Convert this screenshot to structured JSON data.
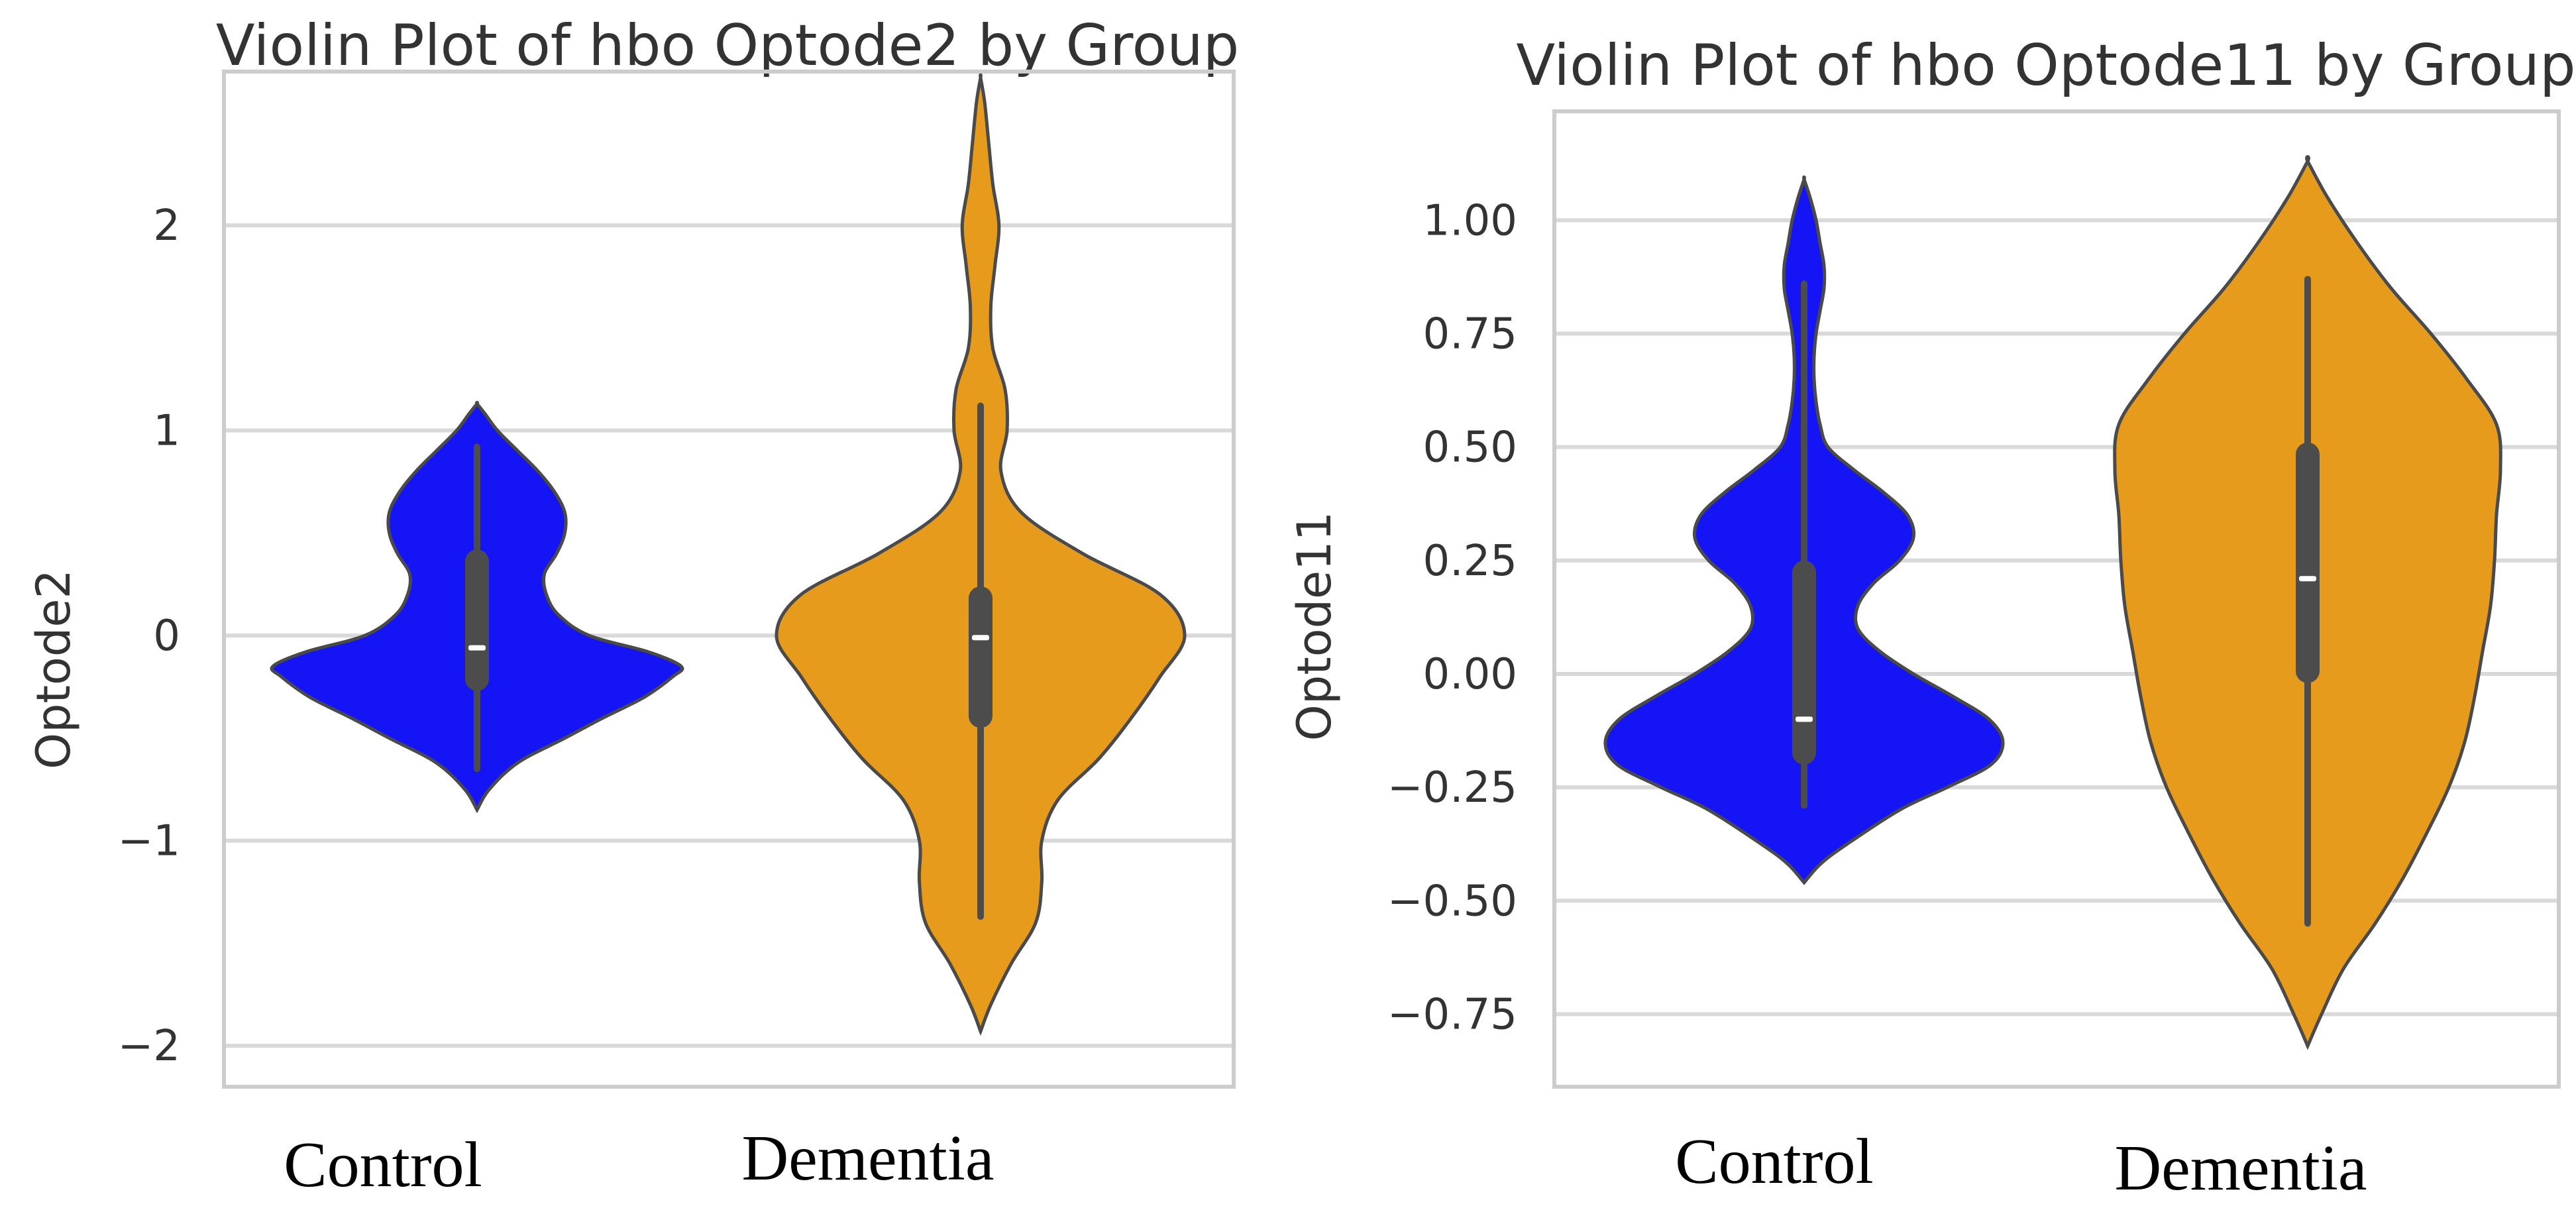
{
  "colors": {
    "control": "#1414f5",
    "dementia": "#e69b1c",
    "box": "#4c4c4c",
    "median": "#ffffff",
    "outline": "#4a4a4a"
  },
  "chart_data": [
    {
      "type": "violin",
      "title": "Violin Plot of hbo Optode2 by Group",
      "xlabel": "",
      "ylabel": "Optode2",
      "categories": [
        "Control",
        "Dementia"
      ],
      "ylim": [
        -2.2,
        2.75
      ],
      "yticks": [
        -2,
        -1,
        0,
        1,
        2
      ],
      "ytick_labels": [
        "−2",
        "−1",
        "0",
        "1",
        "2"
      ],
      "grid": true,
      "series": [
        {
          "name": "Control",
          "color": "#1414f5",
          "violin_min": -0.85,
          "violin_max": 1.13,
          "profile_y": [
            -0.85,
            -0.75,
            -0.62,
            -0.5,
            -0.4,
            -0.3,
            -0.2,
            -0.15,
            -0.08,
            0.0,
            0.1,
            0.2,
            0.3,
            0.4,
            0.5,
            0.6,
            0.7,
            0.8,
            0.9,
            1.0,
            1.08,
            1.13
          ],
          "profile_w": [
            0.0,
            0.06,
            0.2,
            0.43,
            0.62,
            0.82,
            0.96,
            1.0,
            0.84,
            0.55,
            0.4,
            0.34,
            0.33,
            0.39,
            0.43,
            0.43,
            0.38,
            0.3,
            0.2,
            0.1,
            0.04,
            0.0
          ],
          "whisker_low": -0.65,
          "q1": -0.27,
          "median": -0.06,
          "q3": 0.42,
          "whisker_high": 0.92
        },
        {
          "name": "Dementia",
          "color": "#e69b1c",
          "violin_min": -1.93,
          "violin_max": 2.72,
          "profile_y": [
            -1.93,
            -1.8,
            -1.6,
            -1.4,
            -1.2,
            -1.0,
            -0.8,
            -0.6,
            -0.4,
            -0.2,
            0.0,
            0.2,
            0.4,
            0.6,
            0.8,
            1.0,
            1.2,
            1.4,
            1.6,
            1.8,
            2.0,
            2.2,
            2.4,
            2.6,
            2.72
          ],
          "profile_w": [
            0.0,
            0.05,
            0.15,
            0.27,
            0.3,
            0.3,
            0.38,
            0.58,
            0.74,
            0.88,
            1.0,
            0.88,
            0.5,
            0.2,
            0.1,
            0.13,
            0.12,
            0.06,
            0.05,
            0.07,
            0.09,
            0.06,
            0.04,
            0.02,
            0.0
          ],
          "whisker_low": -1.37,
          "q1": -0.45,
          "median": -0.01,
          "q3": 0.24,
          "whisker_high": 1.12
        }
      ]
    },
    {
      "type": "violin",
      "title": "Violin Plot of hbo Optode11 by Group",
      "xlabel": "",
      "ylabel": "Optode11",
      "categories": [
        "Control",
        "Dementia"
      ],
      "ylim": [
        -0.91,
        1.24
      ],
      "yticks": [
        -0.75,
        -0.5,
        -0.25,
        0.0,
        0.25,
        0.5,
        0.75,
        1.0
      ],
      "ytick_labels": [
        "−0.75",
        "−0.50",
        "−0.25",
        "0.00",
        "0.25",
        "0.50",
        "0.75",
        "1.00"
      ],
      "grid": true,
      "series": [
        {
          "name": "Control",
          "color": "#1414f5",
          "violin_min": -0.46,
          "violin_max": 1.09,
          "profile_y": [
            -0.46,
            -0.42,
            -0.38,
            -0.3,
            -0.25,
            -0.2,
            -0.15,
            -0.1,
            -0.05,
            0.0,
            0.05,
            0.1,
            0.15,
            0.2,
            0.25,
            0.3,
            0.35,
            0.4,
            0.45,
            0.5,
            0.55,
            0.6,
            0.65,
            0.7,
            0.75,
            0.8,
            0.85,
            0.9,
            0.95,
            1.0,
            1.05,
            1.09
          ],
          "profile_w": [
            0.0,
            0.08,
            0.2,
            0.48,
            0.72,
            0.94,
            1.0,
            0.93,
            0.75,
            0.55,
            0.38,
            0.27,
            0.27,
            0.35,
            0.48,
            0.55,
            0.52,
            0.4,
            0.25,
            0.12,
            0.08,
            0.06,
            0.05,
            0.05,
            0.06,
            0.08,
            0.1,
            0.1,
            0.08,
            0.06,
            0.03,
            0.0
          ],
          "whisker_low": -0.29,
          "q1": -0.2,
          "median": -0.1,
          "q3": 0.25,
          "whisker_high": 0.86
        },
        {
          "name": "Dementia",
          "color": "#e69b1c",
          "violin_min": -0.82,
          "violin_max": 1.13,
          "profile_y": [
            -0.82,
            -0.75,
            -0.65,
            -0.55,
            -0.45,
            -0.35,
            -0.25,
            -0.15,
            -0.05,
            0.05,
            0.15,
            0.25,
            0.35,
            0.45,
            0.55,
            0.65,
            0.75,
            0.85,
            0.95,
            1.05,
            1.13
          ],
          "profile_w": [
            0.0,
            0.07,
            0.18,
            0.34,
            0.48,
            0.6,
            0.71,
            0.79,
            0.84,
            0.88,
            0.92,
            0.94,
            0.95,
            0.97,
            0.95,
            0.8,
            0.62,
            0.42,
            0.25,
            0.1,
            0.0
          ],
          "whisker_low": -0.55,
          "q1": -0.02,
          "median": 0.21,
          "q3": 0.51,
          "whisker_high": 0.87
        }
      ]
    }
  ]
}
